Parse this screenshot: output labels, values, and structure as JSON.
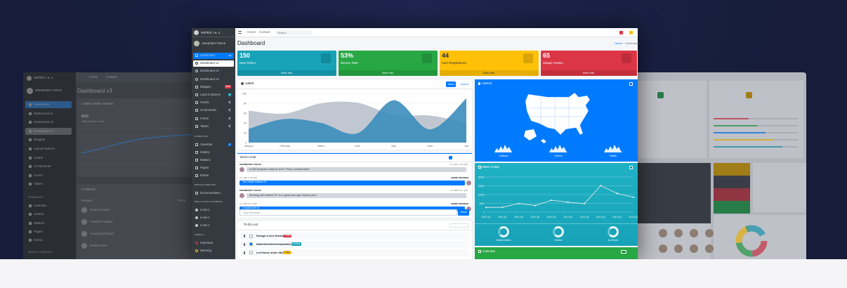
{
  "left": {
    "brand": "AdminLTE 3",
    "user": "Alexander Pierce",
    "sidebar": [
      "Dashboard",
      "Dashboard v1",
      "Dashboard v2",
      "Dashboard v3",
      "Widgets",
      "Layout Options",
      "Charts",
      "UI Elements",
      "Forms",
      "Tables"
    ],
    "section_title": "EXAMPLES",
    "examples": [
      "Calendar",
      "Gallery",
      "Mailbox",
      "Pages",
      "Extras"
    ],
    "misc_title": "MISCELLANEOUS",
    "topnav": [
      "Home",
      "Contact"
    ],
    "page_title": "Dashboard v3",
    "card_title": "Online Store Visitors",
    "count": "820",
    "count_label": "Visitors Over Time",
    "products_title": "Products",
    "columns": [
      "Product",
      "Price"
    ],
    "products": [
      "Some Product",
      "Another Product",
      "Amazing Product",
      "Perfect Item"
    ]
  },
  "center": {
    "brand": "AdminLTE 3",
    "user": "Alexander Pierce",
    "topnav": [
      "Home",
      "Contact"
    ],
    "search": "Search",
    "sidebar": [
      {
        "label": "Dashboard"
      },
      {
        "label": "Dashboard v1"
      },
      {
        "label": "Dashboard v2"
      },
      {
        "label": "Dashboard v3"
      },
      {
        "label": "Widgets",
        "badge": "New"
      },
      {
        "label": "Layout Options",
        "badge": "6"
      },
      {
        "label": "Charts"
      },
      {
        "label": "UI Elements"
      },
      {
        "label": "Forms"
      },
      {
        "label": "Tables"
      }
    ],
    "sections": [
      {
        "title": "EXAMPLES",
        "items": [
          {
            "label": "Calendar",
            "badge": "2"
          },
          {
            "label": "Gallery"
          },
          {
            "label": "Mailbox"
          },
          {
            "label": "Pages"
          },
          {
            "label": "Extras"
          }
        ]
      },
      {
        "title": "MISCELLANEOUS",
        "items": [
          {
            "label": "Documentation"
          }
        ]
      },
      {
        "title": "MULTI LEVEL EXAMPLE",
        "items": [
          {
            "label": "Level 1"
          },
          {
            "label": "Level 1"
          },
          {
            "label": "Level 1"
          }
        ]
      },
      {
        "title": "LABELS",
        "items": [
          {
            "label": "Important"
          },
          {
            "label": "Warning"
          }
        ]
      }
    ],
    "page_title": "Dashboard",
    "breadcrumb": [
      "Home",
      "Dashboard"
    ],
    "info_boxes": [
      {
        "value": "150",
        "label": "New Orders",
        "link": "More info",
        "color": "#17a2b8"
      },
      {
        "value": "53%",
        "label": "Bounce Rate",
        "link": "More info",
        "color": "#28a745"
      },
      {
        "value": "44",
        "label": "User Registrations",
        "link": "More info",
        "color": "#ffc107"
      },
      {
        "value": "65",
        "label": "Unique Visitors",
        "link": "More info",
        "color": "#dc3545"
      }
    ],
    "sales_card": {
      "title": "Sales",
      "tabs": [
        "Area",
        "Donut"
      ],
      "chart": {
        "type": "area",
        "categories": [
          "January",
          "February",
          "March",
          "April",
          "May",
          "June",
          "July"
        ],
        "series": [
          {
            "color": "#c1c7d1",
            "values": [
              65,
              59,
              80,
              81,
              56,
              55,
              40
            ]
          },
          {
            "color": "#3c8dbc",
            "values": [
              28,
              48,
              40,
              19,
              86,
              27,
              90
            ]
          }
        ],
        "ylim": [
          0,
          100
        ],
        "yticks": [
          0,
          20,
          40,
          60,
          80,
          100
        ],
        "grid": true
      }
    },
    "chat": {
      "title": "Direct Chat",
      "messages": [
        {
          "name": "Alexander Pierce",
          "time": "23 Jan 2:00 pm",
          "text": "Is this template really for free? That's unbelievable!",
          "right": false
        },
        {
          "name": "Sarah Bullock",
          "time": "23 Jan 2:05 pm",
          "text": "You better believe it!",
          "right": true
        },
        {
          "name": "Alexander Pierce",
          "time": "23 Jan 5:37 pm",
          "text": "Working with AdminLTE on a great new app! Wanna join?",
          "right": false
        },
        {
          "name": "Sarah Bullock",
          "time": "23 Jan 6:10 pm",
          "text": "I would love to.",
          "right": true
        }
      ],
      "placeholder": "Type Message ...",
      "send": "Send"
    },
    "todo": {
      "title": "To Do List",
      "items": [
        {
          "text": "Design a nice theme",
          "badge": "2 mins",
          "color": "#dc3545",
          "done": false
        },
        {
          "text": "Make the theme responsive",
          "badge": "4 hours",
          "color": "#17a2b8",
          "done": true
        },
        {
          "text": "Let theme shine like a star",
          "badge": "1 day",
          "color": "#ffc107",
          "done": false
        }
      ]
    },
    "visitors": {
      "title": "Visitors",
      "stats": [
        "Visitors",
        "Online",
        "Sales"
      ]
    },
    "sales_graph": {
      "title": "Sales Graph",
      "chart": {
        "type": "line",
        "categories": [
          "2011 Q1",
          "2011 Q2",
          "2011 Q3",
          "2011 Q4",
          "2012 Q1",
          "2012 Q2",
          "2012 Q3",
          "2012 Q4",
          "2013 Q1",
          "2013 Q2"
        ],
        "values": [
          2666,
          2778,
          4912,
          3767,
          6810,
          5670,
          4820,
          15073,
          10687,
          8432
        ],
        "color": "#efefef",
        "ylim": [
          0,
          20000
        ],
        "yticks": [
          0,
          5000,
          10000,
          15000,
          20000
        ],
        "grid": true
      },
      "knobs": [
        "Mail-Orders",
        "Online",
        "In-Store"
      ]
    },
    "calendar": {
      "title": "Calendar"
    }
  }
}
